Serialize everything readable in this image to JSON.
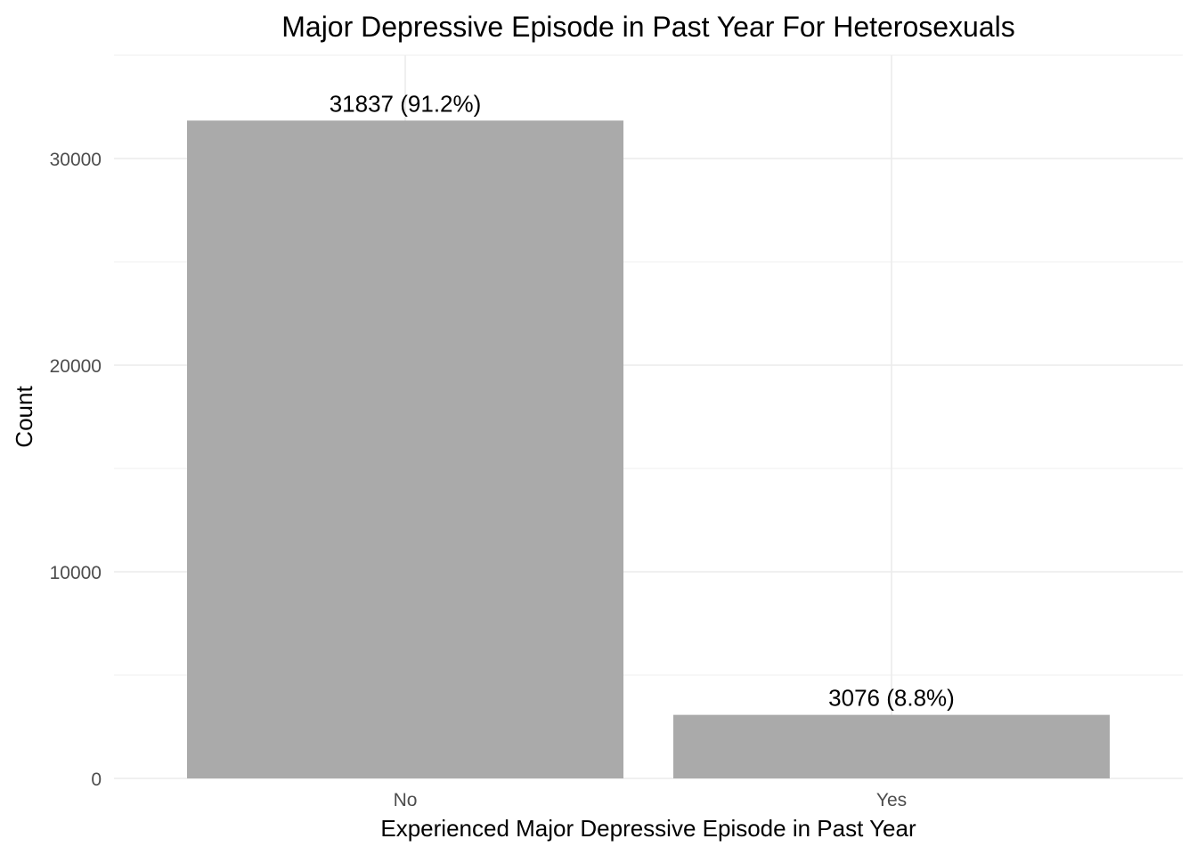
{
  "chart_data": {
    "type": "bar",
    "title": "Major Depressive Episode in Past Year For Heterosexuals",
    "xlabel": "Experienced Major Depressive Episode in Past Year",
    "ylabel": "Count",
    "categories": [
      "No",
      "Yes"
    ],
    "values": [
      31837,
      3076
    ],
    "data_labels": [
      "31837 (91.2%)",
      "3076 (8.8%)"
    ],
    "ylim": [
      0,
      35000
    ],
    "yticks": [
      0,
      10000,
      20000,
      30000
    ],
    "ytick_labels": [
      "0",
      "10000",
      "20000",
      "30000"
    ],
    "bar_color": "#aaaaaa",
    "grid": true,
    "legend": "none"
  }
}
